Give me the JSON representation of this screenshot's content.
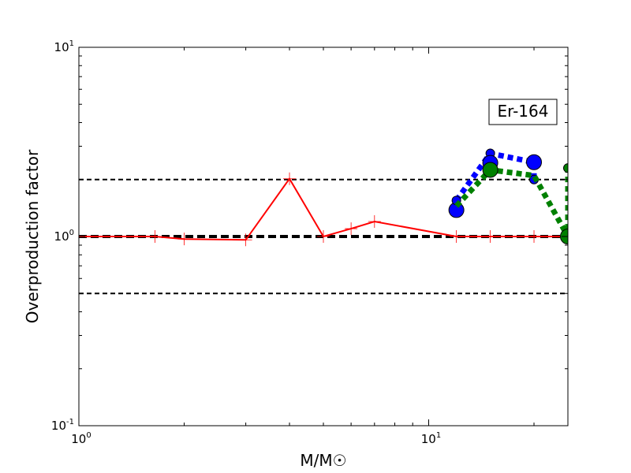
{
  "chart_data": {
    "type": "line",
    "xscale": "log",
    "yscale": "log",
    "xlim": [
      1,
      25
    ],
    "ylim": [
      0.1,
      10
    ],
    "xlabel": "M/M☉",
    "ylabel": "Overproduction factor",
    "x_ticks": [
      {
        "base": "10",
        "exp": "0",
        "value": 1
      },
      {
        "base": "10",
        "exp": "1",
        "value": 10
      }
    ],
    "y_ticks": [
      {
        "base": "10",
        "exp": "-1",
        "value": 0.1
      },
      {
        "base": "10",
        "exp": "0",
        "value": 1
      },
      {
        "base": "10",
        "exp": "1",
        "value": 10
      }
    ],
    "annotation": "Er-164",
    "reference_lines": [
      {
        "y": 2.0,
        "color": "#000000",
        "style": "dashed",
        "width": 2
      },
      {
        "y": 1.0,
        "color": "#000000",
        "style": "dashed",
        "width": 4
      },
      {
        "y": 0.5,
        "color": "#000000",
        "style": "dashed",
        "width": 2
      }
    ],
    "series": [
      {
        "color": "#ff0000",
        "style": "solid",
        "marker": "plus",
        "x": [
          1.0,
          1.65,
          2.0,
          3.0,
          4.0,
          5.0,
          6.0,
          7.0,
          12.0,
          15.0,
          20.0,
          25.0
        ],
        "y": [
          1.0,
          1.0,
          0.97,
          0.96,
          2.02,
          1.0,
          1.1,
          1.2,
          1.0,
          1.0,
          1.0,
          1.0
        ]
      },
      {
        "color": "#0000ff",
        "style": "dotted",
        "marker": "circle",
        "points": [
          {
            "x": 12.0,
            "y": 1.38,
            "size": "large"
          },
          {
            "x": 12.0,
            "y": 1.55,
            "size": "small"
          },
          {
            "x": 15.0,
            "y": 2.75,
            "size": "small"
          },
          {
            "x": 15.0,
            "y": 2.45,
            "size": "large"
          },
          {
            "x": 20.0,
            "y": 2.47,
            "size": "large"
          },
          {
            "x": 20.0,
            "y": 2.0,
            "size": "small"
          }
        ],
        "x": [
          12.0,
          15.0,
          20.0,
          20.0
        ],
        "y": [
          1.55,
          2.75,
          2.47,
          2.0
        ]
      },
      {
        "color": "#008000",
        "style": "dotted",
        "marker": "circle",
        "points": [
          {
            "x": 15.0,
            "y": 2.25,
            "size": "large"
          },
          {
            "x": 25.0,
            "y": 1.0,
            "size": "large"
          },
          {
            "x": 25.0,
            "y": 2.3,
            "size": "small"
          }
        ],
        "x": [
          12.0,
          15.0,
          20.0,
          25.0,
          25.0
        ],
        "y": [
          1.45,
          2.25,
          2.1,
          1.0,
          2.3
        ]
      }
    ]
  }
}
